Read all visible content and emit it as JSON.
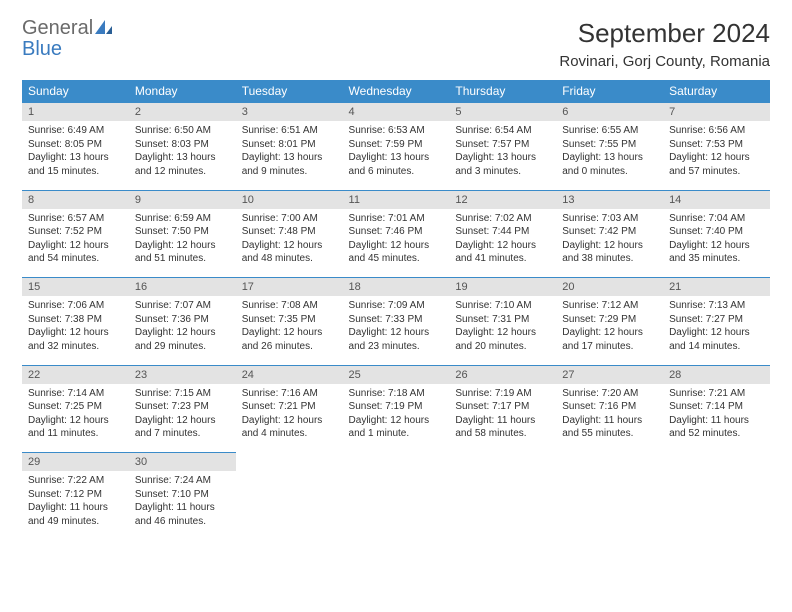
{
  "logo": {
    "general": "General",
    "blue": "Blue"
  },
  "title": "September 2024",
  "location": "Rovinari, Gorj County, Romania",
  "colors": {
    "header_bg": "#3a8bc9",
    "header_text": "#ffffff",
    "daynum_bg": "#e3e3e3",
    "border": "#3a8bc9",
    "logo_gray": "#6a6a6a",
    "logo_blue": "#3a7bbf"
  },
  "dow": [
    "Sunday",
    "Monday",
    "Tuesday",
    "Wednesday",
    "Thursday",
    "Friday",
    "Saturday"
  ],
  "weeks": [
    [
      {
        "n": "1",
        "sr": "Sunrise: 6:49 AM",
        "ss": "Sunset: 8:05 PM",
        "dl": "Daylight: 13 hours and 15 minutes."
      },
      {
        "n": "2",
        "sr": "Sunrise: 6:50 AM",
        "ss": "Sunset: 8:03 PM",
        "dl": "Daylight: 13 hours and 12 minutes."
      },
      {
        "n": "3",
        "sr": "Sunrise: 6:51 AM",
        "ss": "Sunset: 8:01 PM",
        "dl": "Daylight: 13 hours and 9 minutes."
      },
      {
        "n": "4",
        "sr": "Sunrise: 6:53 AM",
        "ss": "Sunset: 7:59 PM",
        "dl": "Daylight: 13 hours and 6 minutes."
      },
      {
        "n": "5",
        "sr": "Sunrise: 6:54 AM",
        "ss": "Sunset: 7:57 PM",
        "dl": "Daylight: 13 hours and 3 minutes."
      },
      {
        "n": "6",
        "sr": "Sunrise: 6:55 AM",
        "ss": "Sunset: 7:55 PM",
        "dl": "Daylight: 13 hours and 0 minutes."
      },
      {
        "n": "7",
        "sr": "Sunrise: 6:56 AM",
        "ss": "Sunset: 7:53 PM",
        "dl": "Daylight: 12 hours and 57 minutes."
      }
    ],
    [
      {
        "n": "8",
        "sr": "Sunrise: 6:57 AM",
        "ss": "Sunset: 7:52 PM",
        "dl": "Daylight: 12 hours and 54 minutes."
      },
      {
        "n": "9",
        "sr": "Sunrise: 6:59 AM",
        "ss": "Sunset: 7:50 PM",
        "dl": "Daylight: 12 hours and 51 minutes."
      },
      {
        "n": "10",
        "sr": "Sunrise: 7:00 AM",
        "ss": "Sunset: 7:48 PM",
        "dl": "Daylight: 12 hours and 48 minutes."
      },
      {
        "n": "11",
        "sr": "Sunrise: 7:01 AM",
        "ss": "Sunset: 7:46 PM",
        "dl": "Daylight: 12 hours and 45 minutes."
      },
      {
        "n": "12",
        "sr": "Sunrise: 7:02 AM",
        "ss": "Sunset: 7:44 PM",
        "dl": "Daylight: 12 hours and 41 minutes."
      },
      {
        "n": "13",
        "sr": "Sunrise: 7:03 AM",
        "ss": "Sunset: 7:42 PM",
        "dl": "Daylight: 12 hours and 38 minutes."
      },
      {
        "n": "14",
        "sr": "Sunrise: 7:04 AM",
        "ss": "Sunset: 7:40 PM",
        "dl": "Daylight: 12 hours and 35 minutes."
      }
    ],
    [
      {
        "n": "15",
        "sr": "Sunrise: 7:06 AM",
        "ss": "Sunset: 7:38 PM",
        "dl": "Daylight: 12 hours and 32 minutes."
      },
      {
        "n": "16",
        "sr": "Sunrise: 7:07 AM",
        "ss": "Sunset: 7:36 PM",
        "dl": "Daylight: 12 hours and 29 minutes."
      },
      {
        "n": "17",
        "sr": "Sunrise: 7:08 AM",
        "ss": "Sunset: 7:35 PM",
        "dl": "Daylight: 12 hours and 26 minutes."
      },
      {
        "n": "18",
        "sr": "Sunrise: 7:09 AM",
        "ss": "Sunset: 7:33 PM",
        "dl": "Daylight: 12 hours and 23 minutes."
      },
      {
        "n": "19",
        "sr": "Sunrise: 7:10 AM",
        "ss": "Sunset: 7:31 PM",
        "dl": "Daylight: 12 hours and 20 minutes."
      },
      {
        "n": "20",
        "sr": "Sunrise: 7:12 AM",
        "ss": "Sunset: 7:29 PM",
        "dl": "Daylight: 12 hours and 17 minutes."
      },
      {
        "n": "21",
        "sr": "Sunrise: 7:13 AM",
        "ss": "Sunset: 7:27 PM",
        "dl": "Daylight: 12 hours and 14 minutes."
      }
    ],
    [
      {
        "n": "22",
        "sr": "Sunrise: 7:14 AM",
        "ss": "Sunset: 7:25 PM",
        "dl": "Daylight: 12 hours and 11 minutes."
      },
      {
        "n": "23",
        "sr": "Sunrise: 7:15 AM",
        "ss": "Sunset: 7:23 PM",
        "dl": "Daylight: 12 hours and 7 minutes."
      },
      {
        "n": "24",
        "sr": "Sunrise: 7:16 AM",
        "ss": "Sunset: 7:21 PM",
        "dl": "Daylight: 12 hours and 4 minutes."
      },
      {
        "n": "25",
        "sr": "Sunrise: 7:18 AM",
        "ss": "Sunset: 7:19 PM",
        "dl": "Daylight: 12 hours and 1 minute."
      },
      {
        "n": "26",
        "sr": "Sunrise: 7:19 AM",
        "ss": "Sunset: 7:17 PM",
        "dl": "Daylight: 11 hours and 58 minutes."
      },
      {
        "n": "27",
        "sr": "Sunrise: 7:20 AM",
        "ss": "Sunset: 7:16 PM",
        "dl": "Daylight: 11 hours and 55 minutes."
      },
      {
        "n": "28",
        "sr": "Sunrise: 7:21 AM",
        "ss": "Sunset: 7:14 PM",
        "dl": "Daylight: 11 hours and 52 minutes."
      }
    ],
    [
      {
        "n": "29",
        "sr": "Sunrise: 7:22 AM",
        "ss": "Sunset: 7:12 PM",
        "dl": "Daylight: 11 hours and 49 minutes."
      },
      {
        "n": "30",
        "sr": "Sunrise: 7:24 AM",
        "ss": "Sunset: 7:10 PM",
        "dl": "Daylight: 11 hours and 46 minutes."
      },
      null,
      null,
      null,
      null,
      null
    ]
  ]
}
